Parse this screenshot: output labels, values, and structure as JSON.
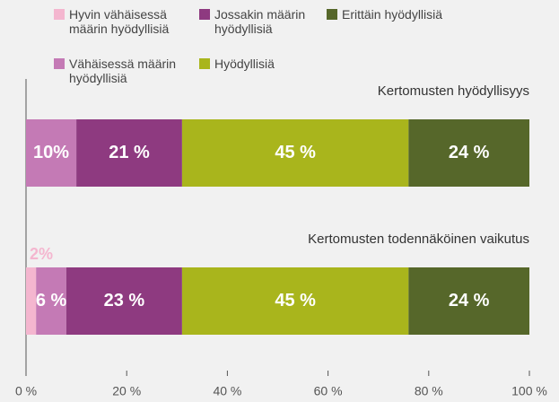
{
  "chart_data": {
    "type": "stacked-barh",
    "categories": [
      "Kertomusten hyödyllisyys",
      "Kertomusten todennäköinen vaikutus"
    ],
    "series": [
      {
        "name": "Hyvin vähäisessä määrin hyödyllisiä",
        "color": "#f4b6cf",
        "values": [
          0,
          2
        ],
        "value_labels": [
          null,
          "2%"
        ]
      },
      {
        "name": "Vähäisessä määrin hyödyllisiä",
        "color": "#c47ab5",
        "values": [
          10,
          6
        ],
        "value_labels": [
          "10%",
          "6 %"
        ]
      },
      {
        "name": "Jossakin määrin hyödyllisiä",
        "color": "#8e3a80",
        "values": [
          21,
          23
        ],
        "value_labels": [
          "21 %",
          "23 %"
        ]
      },
      {
        "name": "Hyödyllisiä",
        "color": "#a9b51c",
        "values": [
          45,
          45
        ],
        "value_labels": [
          "45 %",
          "45 %"
        ]
      },
      {
        "name": "Erittäin hyödyllisiä",
        "color": "#56672a",
        "values": [
          24,
          24
        ],
        "value_labels": [
          "24 %",
          "24 %"
        ]
      }
    ],
    "xlim": [
      0,
      100
    ],
    "xticks": [
      {
        "value": 0,
        "label": "0 %"
      },
      {
        "value": 20,
        "label": "20 %"
      },
      {
        "value": 40,
        "label": "40 %"
      },
      {
        "value": 60,
        "label": "60 %"
      },
      {
        "value": 80,
        "label": "80 %"
      },
      {
        "value": 100,
        "label": "100 %"
      }
    ]
  }
}
